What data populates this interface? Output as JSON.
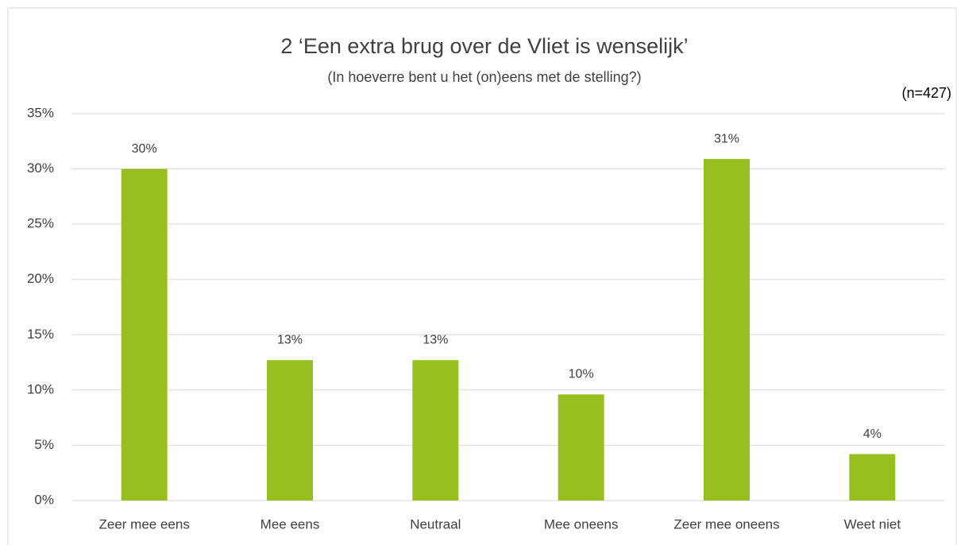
{
  "chart_data": {
    "type": "bar",
    "title": "2 ‘Een extra brug over de Vliet is wenselijk’",
    "subtitle": "(In hoeverre bent u het (on)eens met de stelling?)",
    "annotation": "(n=427)",
    "categories": [
      "Zeer mee eens",
      "Mee eens",
      "Neutraal",
      "Mee oneens",
      "Zeer mee oneens",
      "Weet niet"
    ],
    "values": [
      30.0,
      12.7,
      12.7,
      9.6,
      30.9,
      4.2
    ],
    "value_labels": [
      "30%",
      "13%",
      "13%",
      "10%",
      "31%",
      "4%"
    ],
    "color": "#97bf1f",
    "ylim": [
      0,
      35
    ],
    "yticks": [
      {
        "value": 0,
        "label": "0%"
      },
      {
        "value": 5,
        "label": "5%"
      },
      {
        "value": 10,
        "label": "10%"
      },
      {
        "value": 15,
        "label": "15%"
      },
      {
        "value": 20,
        "label": "20%"
      },
      {
        "value": 25,
        "label": "25%"
      },
      {
        "value": 30,
        "label": "30%"
      },
      {
        "value": 35,
        "label": "35%"
      }
    ],
    "grid": true
  }
}
